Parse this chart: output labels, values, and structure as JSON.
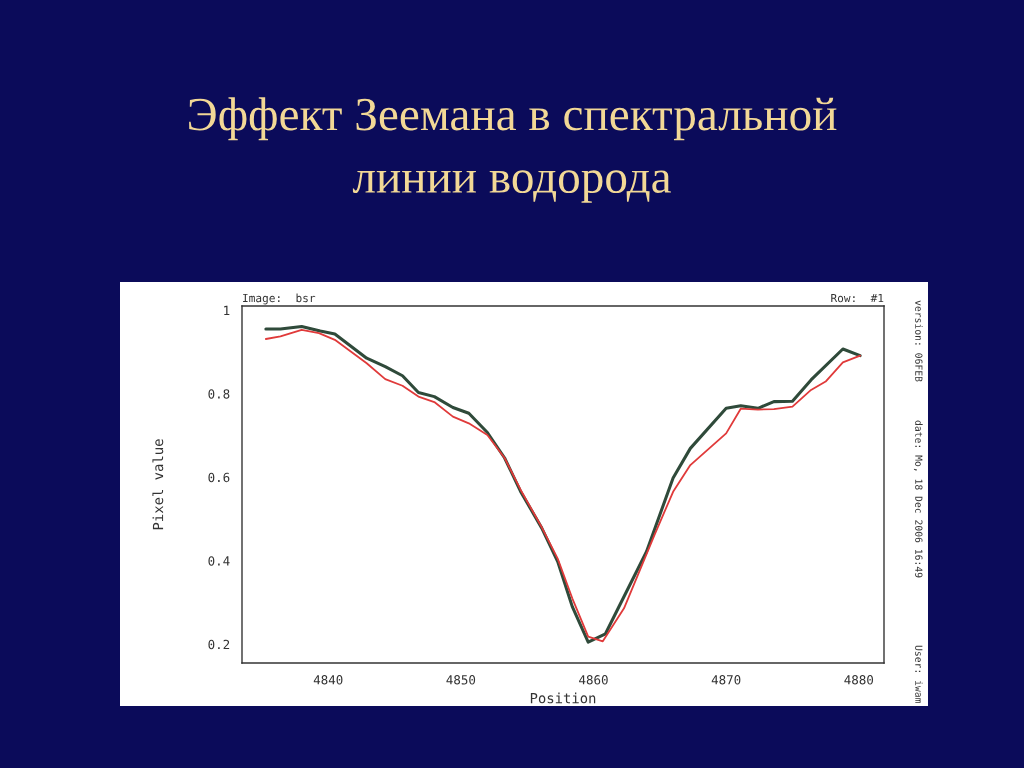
{
  "chart_data": {
    "type": "line",
    "title": "Эффект Зеемана в спектральной\nлинии водорода",
    "xlabel": "Position",
    "ylabel": "Pixel value",
    "annotations": [
      "Image:  bsr",
      "Row:  #1",
      "version: 06FEB",
      "date: Mo, 18 Dec 2006 16:49",
      "User: iwam"
    ],
    "xlim": [
      4833.5,
      4881.9
    ],
    "ylim": [
      0.155,
      1.01
    ],
    "xticks": [
      4840,
      4850,
      4860,
      4870,
      4880
    ],
    "yticks": [
      {
        "value": 0.2,
        "label": "0.2"
      },
      {
        "value": 0.4,
        "label": "0.4"
      },
      {
        "value": 0.6,
        "label": "0.6"
      },
      {
        "value": 0.8,
        "label": "0.8"
      },
      1
    ],
    "grid": false,
    "series": [
      {
        "color": "#2f4a3a",
        "x": [
          4835.3,
          4836.4,
          4838.0,
          4839.4,
          4840.5,
          4842.9,
          4844.3,
          4845.6,
          4846.8,
          4848.0,
          4849.4,
          4850.6,
          4852.0,
          4853.3,
          4854.5,
          4856.1,
          4857.3,
          4858.4,
          4859.6,
          4860.9,
          4862.0,
          4864.0,
          4866.0,
          4867.3,
          4870.0,
          4871.1,
          4872.4,
          4873.6,
          4875.0,
          4876.4,
          4878.8,
          4880.1
        ],
        "values": [
          0.955,
          0.955,
          0.961,
          0.95,
          0.943,
          0.885,
          0.865,
          0.843,
          0.803,
          0.793,
          0.767,
          0.753,
          0.707,
          0.646,
          0.566,
          0.478,
          0.398,
          0.29,
          0.205,
          0.225,
          0.295,
          0.422,
          0.598,
          0.669,
          0.765,
          0.771,
          0.765,
          0.781,
          0.782,
          0.833,
          0.907,
          0.891
        ]
      },
      {
        "color": "#e03a3a",
        "x": [
          4835.3,
          4836.4,
          4838.0,
          4839.3,
          4840.5,
          4842.9,
          4844.3,
          4845.6,
          4846.8,
          4848.0,
          4849.4,
          4850.6,
          4852.0,
          4853.3,
          4854.5,
          4856.1,
          4857.3,
          4858.4,
          4859.6,
          4860.7,
          4862.3,
          4864.6,
          4866.0,
          4867.3,
          4870.0,
          4871.1,
          4872.4,
          4873.6,
          4875.0,
          4876.4,
          4877.5,
          4878.8,
          4880.1
        ],
        "values": [
          0.931,
          0.937,
          0.953,
          0.945,
          0.929,
          0.873,
          0.835,
          0.819,
          0.793,
          0.78,
          0.745,
          0.729,
          0.701,
          0.646,
          0.57,
          0.48,
          0.405,
          0.31,
          0.218,
          0.207,
          0.286,
          0.462,
          0.565,
          0.629,
          0.705,
          0.764,
          0.762,
          0.763,
          0.769,
          0.809,
          0.829,
          0.875,
          0.891
        ]
      }
    ]
  }
}
